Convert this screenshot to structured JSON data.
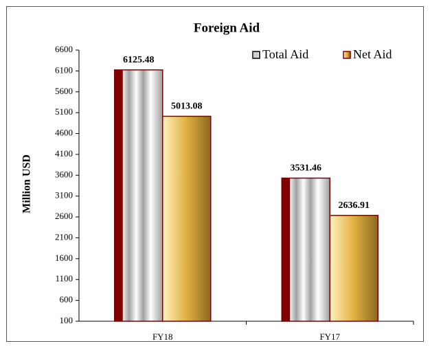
{
  "chart_data": {
    "type": "bar",
    "title": "Foreign Aid",
    "y_label": "Million USD",
    "categories": [
      "FY18",
      "FY17"
    ],
    "series": [
      {
        "name": "Total Aid",
        "color": "#a0a0a0",
        "values": [
          6125.48,
          3531.46
        ]
      },
      {
        "name": "Net Aid",
        "color": "#e0b040",
        "values": [
          5013.08,
          2636.91
        ]
      }
    ],
    "ylim": [
      100,
      6600
    ],
    "yticks": [
      100,
      600,
      1100,
      1600,
      2100,
      2600,
      3100,
      3600,
      4100,
      4600,
      5100,
      5600,
      6100,
      6600
    ],
    "grid": false,
    "legend": "top-right"
  }
}
